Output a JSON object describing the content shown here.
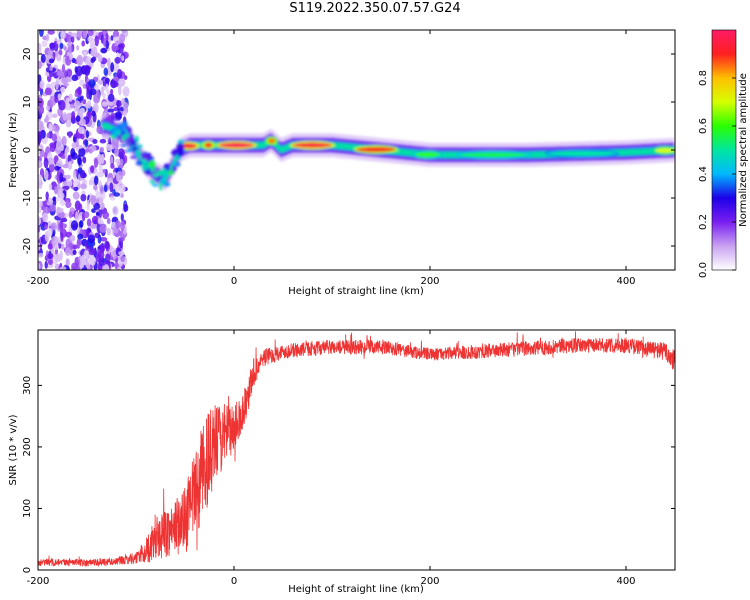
{
  "figure": {
    "title": "S119.2022.350.07.57.G24"
  },
  "chart_data": [
    {
      "type": "heatmap",
      "xlabel": "Height of straight line (km)",
      "ylabel": "Frequency (Hz)",
      "xlim": [
        -200,
        450
      ],
      "ylim": [
        -25,
        25
      ],
      "x_ticks": [
        -200,
        0,
        200,
        400
      ],
      "y_ticks": [
        -20,
        -10,
        0,
        10,
        20
      ],
      "colorbar": {
        "label": "Normalized spectral amplitude",
        "range": [
          0,
          1
        ],
        "ticks": [
          "0.0",
          "0.2",
          "0.4",
          "0.6",
          "0.8"
        ],
        "colormap": [
          "#ffffff",
          "#c9a2f2",
          "#7a1ff0",
          "#1c00e8",
          "#00b8ff",
          "#00e6a0",
          "#2bff00",
          "#d6ff00",
          "#ffc000",
          "#ff2020",
          "#ff1a66"
        ]
      },
      "ridge": [
        {
          "x": -130,
          "y": 5
        },
        {
          "x": -120,
          "y": 4
        },
        {
          "x": -110,
          "y": 3
        },
        {
          "x": -100,
          "y": 0
        },
        {
          "x": -90,
          "y": -3
        },
        {
          "x": -80,
          "y": -5
        },
        {
          "x": -70,
          "y": -6
        },
        {
          "x": -62,
          "y": -3
        },
        {
          "x": -55,
          "y": 0
        },
        {
          "x": -45,
          "y": 1
        },
        {
          "x": -35,
          "y": 1
        },
        {
          "x": -20,
          "y": 1
        },
        {
          "x": 0,
          "y": 1
        },
        {
          "x": 30,
          "y": 1
        },
        {
          "x": 38,
          "y": 2
        },
        {
          "x": 48,
          "y": 0
        },
        {
          "x": 60,
          "y": 1
        },
        {
          "x": 100,
          "y": 1
        },
        {
          "x": 150,
          "y": 0
        },
        {
          "x": 200,
          "y": -1
        },
        {
          "x": 300,
          "y": -1
        },
        {
          "x": 400,
          "y": -0.5
        },
        {
          "x": 450,
          "y": 0
        }
      ],
      "noise_region": {
        "x_from": -200,
        "x_to": -120,
        "y_from": -25,
        "y_to": 25
      }
    },
    {
      "type": "line",
      "xlabel": "Height of straight line (km)",
      "ylabel": "SNR (10 * v/v)",
      "xlim": [
        -200,
        450
      ],
      "ylim": [
        0,
        390
      ],
      "x_ticks": [
        -200,
        0,
        200,
        400
      ],
      "y_ticks": [
        0,
        100,
        200,
        300
      ],
      "series": [
        {
          "color": "#ee3333",
          "x": [
            -200,
            -150,
            -120,
            -100,
            -90,
            -80,
            -70,
            -60,
            -50,
            -40,
            -30,
            -20,
            -10,
            0,
            10,
            20,
            30,
            50,
            80,
            100,
            150,
            200,
            250,
            300,
            350,
            400,
            440,
            450
          ],
          "y": [
            12,
            12,
            14,
            20,
            30,
            50,
            60,
            70,
            80,
            120,
            170,
            200,
            220,
            230,
            260,
            320,
            345,
            355,
            360,
            362,
            362,
            350,
            355,
            360,
            365,
            365,
            355,
            340
          ],
          "noise": [
            6,
            6,
            6,
            10,
            20,
            35,
            40,
            45,
            55,
            70,
            80,
            70,
            50,
            40,
            30,
            25,
            15,
            12,
            12,
            12,
            12,
            10,
            12,
            12,
            12,
            12,
            15,
            25
          ]
        }
      ]
    }
  ]
}
